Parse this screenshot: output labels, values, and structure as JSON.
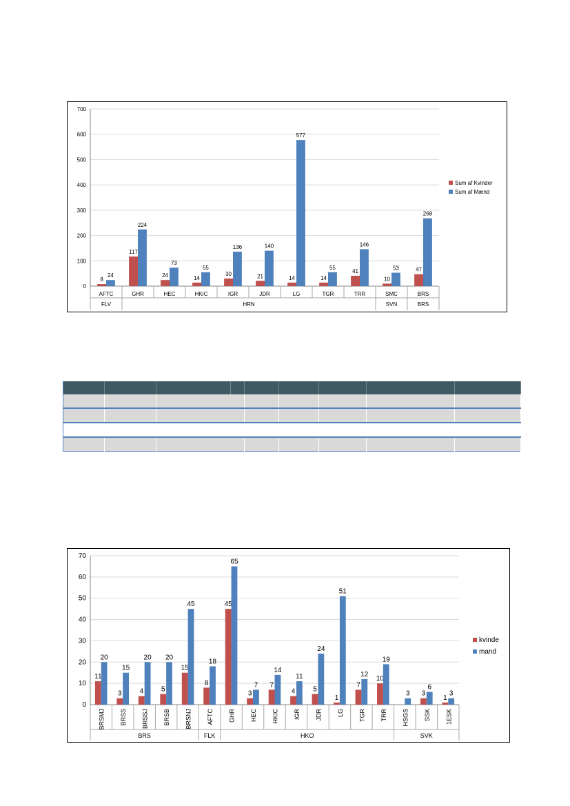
{
  "colors": {
    "kvinder": "#c0504d",
    "maend": "#4f81bd",
    "table_header": "#3f5a62",
    "table_shade": "#d9d9d9",
    "table_border": "#4f81bd"
  },
  "chart_data": [
    {
      "type": "bar",
      "categories": [
        "AFTC",
        "GHR",
        "HEC",
        "HKIC",
        "IGR",
        "JDR",
        "LG",
        "TGR",
        "TRR",
        "SMC",
        "BRS"
      ],
      "groups": [
        {
          "label": "FLV",
          "span": 1
        },
        {
          "label": "HRN",
          "span": 8
        },
        {
          "label": "SVN",
          "span": 1
        },
        {
          "label": "BRS",
          "span": 1
        }
      ],
      "series": [
        {
          "name": "Sum af Kvinder",
          "values": [
            8,
            117,
            24,
            14,
            30,
            21,
            14,
            14,
            41,
            10,
            47
          ]
        },
        {
          "name": "Sum af Mænd",
          "values": [
            24,
            224,
            73,
            55,
            136,
            140,
            577,
            55,
            146,
            53,
            268
          ]
        }
      ],
      "yticks": [
        "0",
        "100",
        "200",
        "300",
        "400",
        "500",
        "600",
        "700"
      ],
      "ylim": [
        0,
        700
      ],
      "grid": true,
      "legend": "right"
    },
    {
      "type": "bar",
      "categories": [
        "BRSMJ",
        "BRSS",
        "BRSSJ",
        "BRSB",
        "BRSNJ",
        "AFTC",
        "GHR",
        "HEC",
        "HKIC",
        "IGR",
        "JDR",
        "LG",
        "TGR",
        "TRR",
        "HSGS",
        "SSK",
        "1ESK"
      ],
      "groups": [
        {
          "label": "BRS",
          "span": 5
        },
        {
          "label": "FLK",
          "span": 1
        },
        {
          "label": "HKO",
          "span": 8
        },
        {
          "label": "SVK",
          "span": 3
        }
      ],
      "series": [
        {
          "name": "kvinde",
          "values": [
            11,
            3,
            4,
            5,
            15,
            8,
            45,
            3,
            7,
            4,
            5,
            1,
            7,
            10,
            null,
            3,
            1
          ]
        },
        {
          "name": "mand",
          "values": [
            20,
            15,
            20,
            20,
            45,
            18,
            65,
            7,
            14,
            11,
            24,
            51,
            12,
            19,
            3,
            6,
            3
          ]
        }
      ],
      "yticks": [
        "0",
        "10",
        "20",
        "30",
        "40",
        "50",
        "60",
        "70"
      ],
      "ylim": [
        0,
        70
      ],
      "grid": true,
      "legend": "right"
    }
  ]
}
